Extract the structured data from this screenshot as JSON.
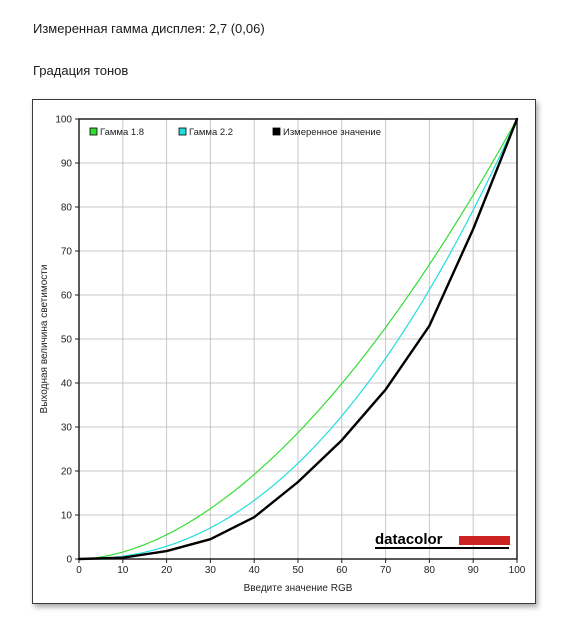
{
  "header": {
    "measured_gamma": "Измеренная гамма дисплея: 2,7 (0,06)",
    "section_title": "Градация тонов"
  },
  "chart_data": {
    "type": "line",
    "title": "",
    "xlabel": "Введите значение RGB",
    "ylabel": "Выходная величина светимости",
    "xlim": [
      0,
      100
    ],
    "ylim": [
      0,
      100
    ],
    "xticks": [
      0,
      10,
      20,
      30,
      40,
      50,
      60,
      70,
      80,
      90,
      100
    ],
    "yticks": [
      0,
      10,
      20,
      30,
      40,
      50,
      60,
      70,
      80,
      90,
      100
    ],
    "grid": true,
    "legend_position": "top-left",
    "series": [
      {
        "name": "Гамма 1.8",
        "color": "#33dd33",
        "gamma": 1.8
      },
      {
        "name": "Гамма 2.2",
        "color": "#22dddd",
        "gamma": 2.2
      },
      {
        "name": "Измеренное значение",
        "color": "#000000",
        "x": [
          0,
          10,
          20,
          30,
          40,
          50,
          60,
          70,
          80,
          90,
          100
        ],
        "values": [
          0,
          0.3,
          1.8,
          4.5,
          9.5,
          17.5,
          27,
          38.5,
          53,
          75,
          100
        ]
      }
    ],
    "logo": "datacolor",
    "logo_color": "#cc2222"
  }
}
